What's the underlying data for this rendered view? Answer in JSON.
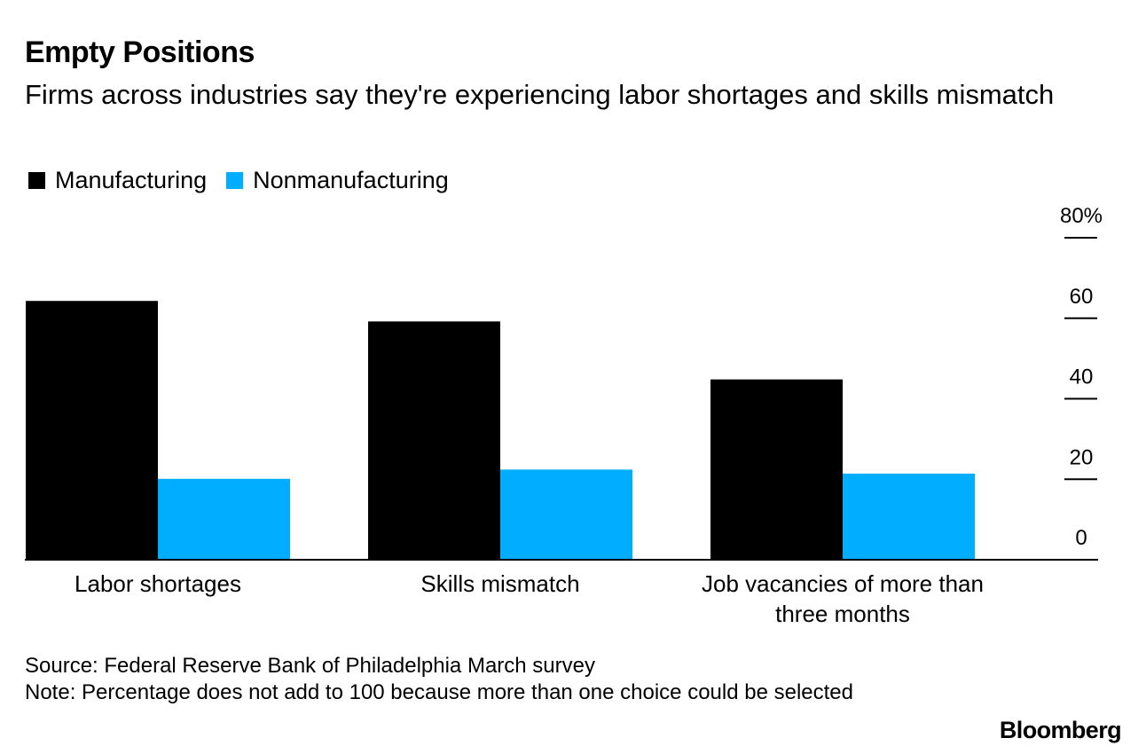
{
  "title": "Empty Positions",
  "subtitle": "Firms across industries say they're experiencing labor shortages and skills mismatch",
  "legend": [
    {
      "label": "Manufacturing",
      "color": "#000000"
    },
    {
      "label": "Nonmanufacturing",
      "color": "#00adff"
    }
  ],
  "chart_data": {
    "type": "bar",
    "title": "Empty Positions",
    "categories": [
      [
        "Labor shortages"
      ],
      [
        "Skills mismatch"
      ],
      [
        "Job vacancies of more than",
        "three months"
      ]
    ],
    "series": [
      {
        "name": "Manufacturing",
        "color": "#000000",
        "values": [
          64.3,
          59.2,
          44.8
        ]
      },
      {
        "name": "Nonmanufacturing",
        "color": "#00adff",
        "values": [
          20.1,
          22.4,
          21.4
        ]
      }
    ],
    "ylim": [
      0,
      80
    ],
    "yticks": [
      {
        "value": 0,
        "label": "0"
      },
      {
        "value": 20,
        "label": "20"
      },
      {
        "value": 40,
        "label": "40"
      },
      {
        "value": 60,
        "label": "60"
      },
      {
        "value": 80,
        "label": "80%"
      }
    ],
    "axis_side": "right",
    "xlabel": "",
    "ylabel": ""
  },
  "footer": {
    "source": "Source: Federal Reserve Bank of Philadelphia March survey",
    "note": "Note: Percentage does not add to 100 because more than one choice could be selected"
  },
  "brand": "Bloomberg"
}
